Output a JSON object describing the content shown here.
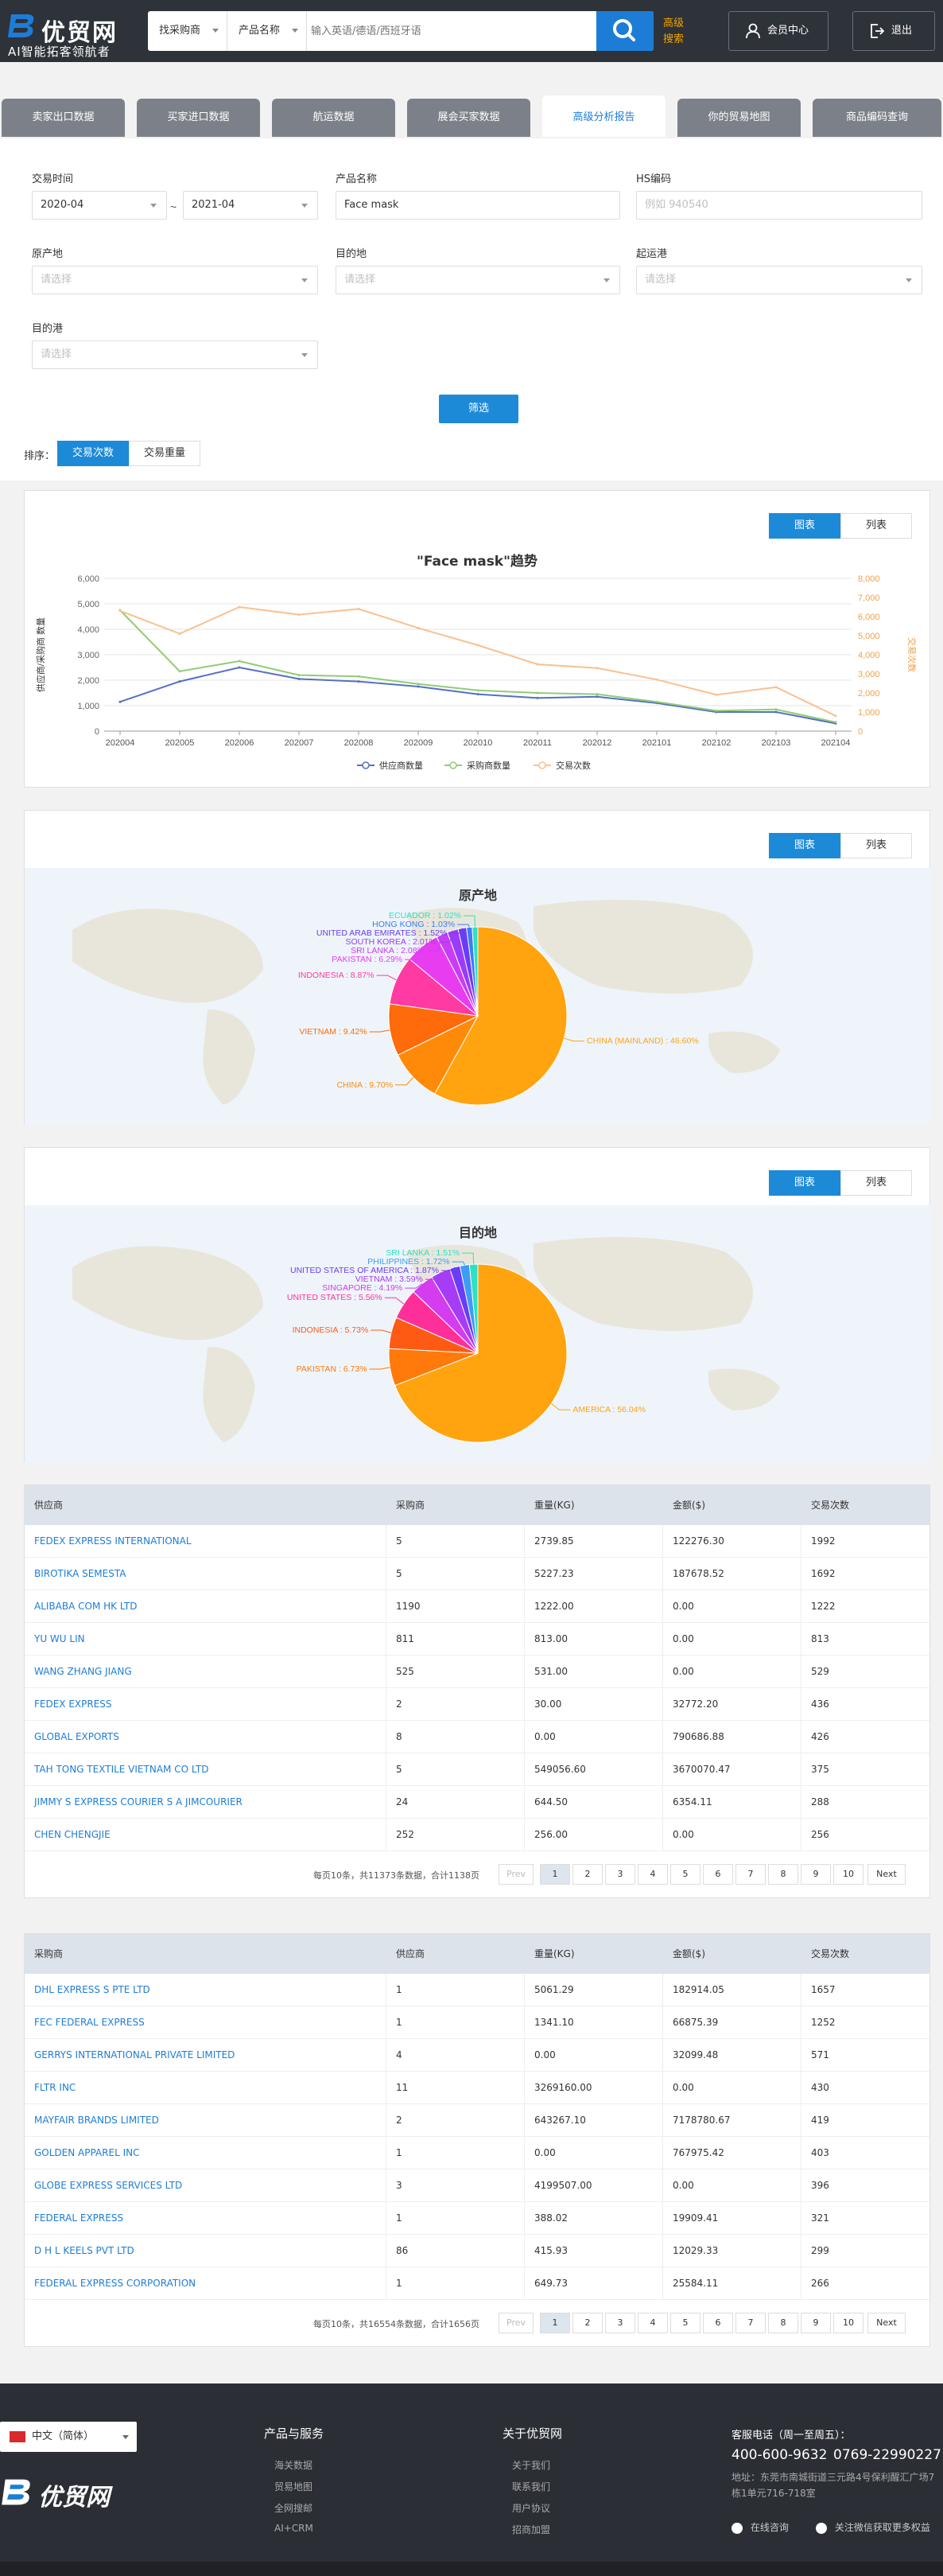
{
  "header": {
    "logo_text": "优贸网",
    "logo_sub": "AI智能拓客领航者",
    "search_type": "找采购商",
    "search_field": "产品名称",
    "search_placeholder": "输入英语/德语/西班牙语",
    "adv_line1": "高级",
    "adv_line2": "搜索",
    "member_label": "会员中心",
    "logout_label": "退出"
  },
  "tabs": [
    {
      "label": "卖家出口数据"
    },
    {
      "label": "买家进口数据"
    },
    {
      "label": "航运数据"
    },
    {
      "label": "展会买家数据"
    },
    {
      "label": "高级分析报告"
    },
    {
      "label": "你的贸易地图"
    },
    {
      "label": "商品编码查询"
    }
  ],
  "filters": {
    "trade_time_label": "交易时间",
    "date_from": "2020-04",
    "date_to": "2021-04",
    "tilde": "~",
    "product_label": "产品名称",
    "product_value": "Face mask",
    "hs_label": "HS编码",
    "hs_placeholder": "例如 940540",
    "origin_label": "原产地",
    "dest_label": "目的地",
    "port_from_label": "起运港",
    "port_to_label": "目的港",
    "select_placeholder": "请选择",
    "filter_button": "筛选",
    "sort_label": "排序：",
    "sort_count": "交易次数",
    "sort_weight": "交易重量"
  },
  "view_toggle": {
    "chart": "图表",
    "list": "列表"
  },
  "trend": {
    "title": "\"Face mask\"趋势",
    "ylabel_left": "供应商/采购商 数量",
    "ylabel_right": "交易次数",
    "legend": [
      "供应商数量",
      "采购商数量",
      "交易次数"
    ],
    "colors": [
      "#5470c6",
      "#91cc75",
      "#fac08f"
    ]
  },
  "chart_data": [
    {
      "type": "line",
      "title": "\"Face mask\"趋势",
      "x": [
        "202004",
        "202005",
        "202006",
        "202007",
        "202008",
        "202009",
        "202010",
        "202011",
        "202012",
        "202101",
        "202102",
        "202103",
        "202104"
      ],
      "ylim_left": [
        0,
        6000
      ],
      "ylim_right": [
        0,
        8000
      ],
      "yticks_left": [
        "0",
        "1,000",
        "2,000",
        "3,000",
        "4,000",
        "5,000",
        "6,000"
      ],
      "yticks_right": [
        "0",
        "1,000",
        "2,000",
        "3,000",
        "4,000",
        "5,000",
        "6,000",
        "7,000",
        "8,000"
      ],
      "series": [
        {
          "name": "供应商数量",
          "axis": "left",
          "values": [
            1150,
            1950,
            2500,
            2050,
            1950,
            1750,
            1450,
            1300,
            1350,
            1100,
            750,
            750,
            300
          ]
        },
        {
          "name": "采购商数量",
          "axis": "left",
          "values": [
            4750,
            2350,
            2750,
            2200,
            2150,
            1850,
            1600,
            1500,
            1450,
            1150,
            800,
            850,
            350
          ]
        },
        {
          "name": "交易次数",
          "axis": "right",
          "values": [
            6300,
            5100,
            6500,
            6100,
            6400,
            5400,
            4500,
            3500,
            3300,
            2700,
            1900,
            2300,
            800
          ]
        }
      ]
    },
    {
      "type": "pie",
      "title": "原产地",
      "labels": [
        "CHINA (MAINLAND)",
        "CHINA",
        "VIETNAM",
        "INDONESIA",
        "PAKISTAN",
        "SRI LANKA",
        "SOUTH KOREA",
        "UNITED ARAB EMIRATES",
        "HONG KONG",
        "ECUADOR"
      ],
      "values": [
        46.6,
        9.7,
        9.42,
        8.87,
        6.29,
        2.08,
        2.01,
        1.52,
        1.03,
        1.02
      ],
      "display": [
        "CHINA (MAINLAND) : 46.60%",
        "CHINA : 9.70%",
        "VIETNAM : 9.42%",
        "INDONESIA : 8.87%",
        "PAKISTAN : 6.29%",
        "SRI LANKA : 2.08%",
        "SOUTH KOREA : 2.01%",
        "UNITED ARAB EMIRATES : 1.52%",
        "HONG KONG : 1.03%",
        "ECUADOR : 1.02%"
      ],
      "colors": [
        "#ffa30f",
        "#ff8a0a",
        "#ff6a0a",
        "#ff3aa3",
        "#e83cf0",
        "#c83cf6",
        "#9a3cf7",
        "#6a3cf7",
        "#3c7cf7",
        "#2ee0c4"
      ]
    },
    {
      "type": "pie",
      "title": "目的地",
      "labels": [
        "AMERICA",
        "PAKISTAN",
        "INDONESIA",
        "UNITED STATES",
        "SINGAPORE",
        "VIETNAM",
        "UNITED STATES OF AMERICA",
        "PHILIPPINES",
        "SRI LANKA"
      ],
      "values": [
        56.04,
        6.73,
        5.73,
        5.56,
        4.19,
        3.59,
        1.87,
        1.72,
        1.51
      ],
      "display": [
        "AMERICA : 56.04%",
        "PAKISTAN : 6.73%",
        "INDONESIA : 5.73%",
        "UNITED STATES : 5.56%",
        "SINGAPORE : 4.19%",
        "VIETNAM : 3.59%",
        "UNITED STATES OF AMERICA : 1.87%",
        "PHILIPPINES : 1.72%",
        "SRI LANKA : 1.51%"
      ],
      "colors": [
        "#ffa30f",
        "#ff7a0a",
        "#ff5a14",
        "#ff2f9a",
        "#d43cf0",
        "#a63cf6",
        "#6a3cf7",
        "#3c9cf7",
        "#2ee0c4"
      ]
    }
  ],
  "suppliers": {
    "headers": [
      "供应商",
      "采购商",
      "重量(KG)",
      "金额($)",
      "交易次数"
    ],
    "rows": [
      [
        "FEDEX EXPRESS INTERNATIONAL",
        "5",
        "2739.85",
        "122276.30",
        "1992"
      ],
      [
        "BIROTIKA SEMESTA",
        "5",
        "5227.23",
        "187678.52",
        "1692"
      ],
      [
        "ALIBABA COM HK LTD",
        "1190",
        "1222.00",
        "0.00",
        "1222"
      ],
      [
        "YU WU LIN",
        "811",
        "813.00",
        "0.00",
        "813"
      ],
      [
        "WANG ZHANG JIANG",
        "525",
        "531.00",
        "0.00",
        "529"
      ],
      [
        "FEDEX EXPRESS",
        "2",
        "30.00",
        "32772.20",
        "436"
      ],
      [
        "GLOBAL EXPORTS",
        "8",
        "0.00",
        "790686.88",
        "426"
      ],
      [
        "TAH TONG TEXTILE VIETNAM CO LTD",
        "5",
        "549056.60",
        "3670070.47",
        "375"
      ],
      [
        "JIMMY S EXPRESS COURIER S A JIMCOURIER",
        "24",
        "644.50",
        "6354.11",
        "288"
      ],
      [
        "CHEN CHENGJIE",
        "252",
        "256.00",
        "0.00",
        "256"
      ]
    ],
    "pager_info": "每页10条，共11373条数据，合计1138页"
  },
  "buyers": {
    "headers": [
      "采购商",
      "供应商",
      "重量(KG)",
      "金额($)",
      "交易次数"
    ],
    "rows": [
      [
        "DHL EXPRESS S PTE LTD",
        "1",
        "5061.29",
        "182914.05",
        "1657"
      ],
      [
        "FEC FEDERAL EXPRESS",
        "1",
        "1341.10",
        "66875.39",
        "1252"
      ],
      [
        "GERRYS INTERNATIONAL PRIVATE LIMITED",
        "4",
        "0.00",
        "32099.48",
        "571"
      ],
      [
        "FLTR INC",
        "11",
        "3269160.00",
        "0.00",
        "430"
      ],
      [
        "MAYFAIR BRANDS LIMITED",
        "2",
        "643267.10",
        "7178780.67",
        "419"
      ],
      [
        "GOLDEN APPAREL INC",
        "1",
        "0.00",
        "767975.42",
        "403"
      ],
      [
        "GLOBE EXPRESS SERVICES LTD",
        "3",
        "4199507.00",
        "0.00",
        "396"
      ],
      [
        "FEDERAL EXPRESS",
        "1",
        "388.02",
        "19909.41",
        "321"
      ],
      [
        "D H L KEELS PVT LTD",
        "86",
        "415.93",
        "12029.33",
        "299"
      ],
      [
        "FEDERAL EXPRESS CORPORATION",
        "1",
        "649.73",
        "25584.11",
        "266"
      ]
    ],
    "pager_info": "每页10条，共16554条数据，合计1656页"
  },
  "pager": {
    "prev": "Prev",
    "next": "Next",
    "pages": [
      "1",
      "2",
      "3",
      "4",
      "5",
      "6",
      "7",
      "8",
      "9",
      "10"
    ]
  },
  "footer": {
    "lang": "中文（简体）",
    "logo_text": "优贸网",
    "col1_title": "产品与服务",
    "col1_items": [
      "海关数据",
      "贸易地图",
      "全网搜邮",
      "AI+CRM"
    ],
    "col2_title": "关于优贸网",
    "col2_items": [
      "关于我们",
      "联系我们",
      "用户协议",
      "招商加盟"
    ],
    "hotline_label": "客服电话（周一至周五）：",
    "phone1": "400-600-9632",
    "phone2": "0769-22990227",
    "address": "地址：东莞市南城街道三元路4号保利醒汇广场7栋1单元716-718室",
    "online": "在线咨询",
    "wechat": "关注微信获取更多权益"
  }
}
